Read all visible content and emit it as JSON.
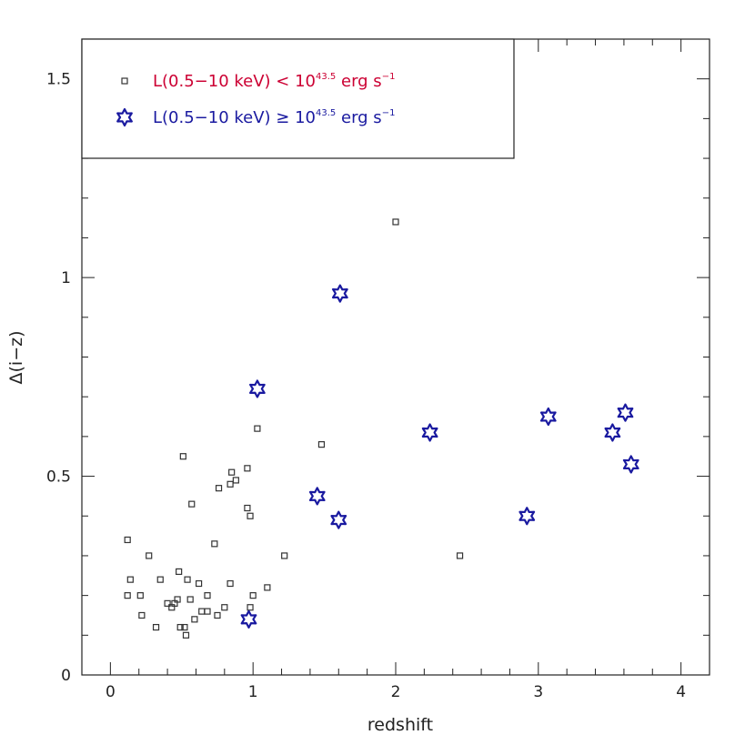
{
  "chart_data": {
    "type": "scatter",
    "xlabel": "redshift",
    "ylabel": "Δ(i−z)",
    "xlim": [
      -0.2,
      4.2
    ],
    "ylim": [
      0,
      1.6
    ],
    "xticks": [
      0,
      1,
      2,
      3,
      4
    ],
    "yticks": [
      0,
      0.5,
      1,
      1.5
    ],
    "ytick_labels": [
      "0",
      "0.5",
      "1",
      "1.5"
    ],
    "xtick_labels": [
      "0",
      "1",
      "2",
      "3",
      "4"
    ],
    "grid": false,
    "legend_position": "top-left",
    "legend": [
      {
        "marker": "square",
        "prefix": "L(0.5−10 keV) < 10",
        "sup": "43.5",
        "suffix": " erg s",
        "suffix_sup": "−1",
        "color": "#cc0033"
      },
      {
        "marker": "star",
        "prefix": "L(0.5−10 keV) ≥ 10",
        "sup": "43.5",
        "suffix": " erg s",
        "suffix_sup": "−1",
        "color": "#1a1aa0"
      }
    ],
    "series": [
      {
        "marker": "square",
        "color": "#333333",
        "points": [
          [
            0.12,
            0.34
          ],
          [
            0.14,
            0.24
          ],
          [
            0.12,
            0.2
          ],
          [
            0.21,
            0.2
          ],
          [
            0.22,
            0.15
          ],
          [
            0.27,
            0.3
          ],
          [
            0.32,
            0.12
          ],
          [
            0.35,
            0.24
          ],
          [
            0.4,
            0.18
          ],
          [
            0.43,
            0.17
          ],
          [
            0.45,
            0.18
          ],
          [
            0.47,
            0.19
          ],
          [
            0.48,
            0.26
          ],
          [
            0.49,
            0.12
          ],
          [
            0.51,
            0.55
          ],
          [
            0.52,
            0.12
          ],
          [
            0.53,
            0.1
          ],
          [
            0.54,
            0.24
          ],
          [
            0.56,
            0.19
          ],
          [
            0.57,
            0.43
          ],
          [
            0.59,
            0.14
          ],
          [
            0.62,
            0.23
          ],
          [
            0.64,
            0.16
          ],
          [
            0.68,
            0.2
          ],
          [
            0.68,
            0.16
          ],
          [
            0.73,
            0.33
          ],
          [
            0.75,
            0.15
          ],
          [
            0.76,
            0.47
          ],
          [
            0.8,
            0.17
          ],
          [
            0.84,
            0.23
          ],
          [
            0.84,
            0.48
          ],
          [
            0.85,
            0.51
          ],
          [
            0.88,
            0.49
          ],
          [
            0.96,
            0.52
          ],
          [
            0.96,
            0.42
          ],
          [
            0.98,
            0.4
          ],
          [
            0.98,
            0.17
          ],
          [
            1.0,
            0.2
          ],
          [
            1.03,
            0.62
          ],
          [
            1.1,
            0.22
          ],
          [
            1.22,
            0.3
          ],
          [
            1.48,
            0.58
          ],
          [
            2.0,
            1.14
          ],
          [
            2.45,
            0.3
          ]
        ]
      },
      {
        "marker": "star",
        "color": "#1a1aa0",
        "points": [
          [
            0.97,
            0.14
          ],
          [
            1.03,
            0.72
          ],
          [
            1.45,
            0.45
          ],
          [
            1.6,
            0.39
          ],
          [
            1.61,
            0.96
          ],
          [
            2.24,
            0.61
          ],
          [
            2.92,
            0.4
          ],
          [
            3.07,
            0.65
          ],
          [
            3.52,
            0.61
          ],
          [
            3.61,
            0.66
          ],
          [
            3.65,
            0.53
          ]
        ]
      }
    ]
  }
}
